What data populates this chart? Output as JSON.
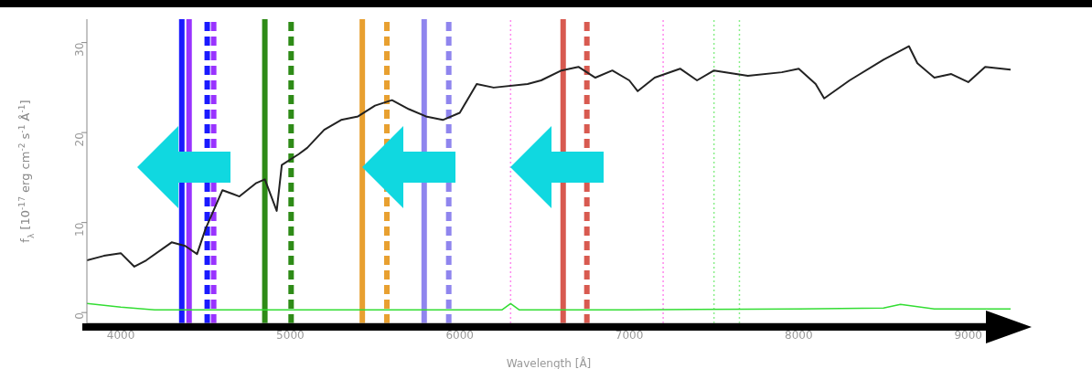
{
  "chart_data": {
    "type": "line",
    "xlabel": "Wavelength [Å]",
    "ylabel": "f$_{λ}$ [10$^{-17}$ erg cm$^{-2}$ s$^{-1}$ Å$^{-1}$]",
    "xlim": [
      3800,
      9250
    ],
    "xticks": [
      4000,
      5000,
      6000,
      7000,
      8000,
      9000
    ],
    "ylim": [
      -1.2,
      32.6
    ],
    "yticks": [
      0,
      10,
      20,
      30
    ],
    "grid": false,
    "legend": false,
    "marker": "none",
    "line_style": "solid",
    "series": [
      {
        "color": "#222222",
        "x": [
          3800,
          3900,
          4000,
          4080,
          4150,
          4300,
          4380,
          4450,
          4500,
          4600,
          4700,
          4800,
          4850,
          4920,
          4950,
          5050,
          5100,
          5200,
          5300,
          5400,
          5500,
          5600,
          5700,
          5800,
          5900,
          6000,
          6100,
          6200,
          6400,
          6480,
          6600,
          6700,
          6800,
          6900,
          7000,
          7050,
          7150,
          7300,
          7400,
          7500,
          7700,
          7900,
          8000,
          8100,
          8150,
          8300,
          8500,
          8650,
          8700,
          8800,
          8900,
          9000,
          9100,
          9250
        ],
        "values": [
          5.8,
          6.3,
          6.6,
          5.1,
          5.8,
          7.8,
          7.4,
          6.5,
          9.3,
          13.6,
          12.9,
          14.4,
          14.8,
          11.3,
          16.4,
          17.6,
          18.3,
          20.3,
          21.4,
          21.8,
          23.0,
          23.6,
          22.6,
          21.8,
          21.4,
          22.2,
          25.4,
          25.0,
          25.4,
          25.8,
          26.9,
          27.3,
          26.1,
          26.9,
          25.8,
          24.6,
          26.1,
          27.1,
          25.8,
          26.9,
          26.3,
          26.7,
          27.1,
          25.4,
          23.8,
          25.8,
          28.1,
          29.6,
          27.7,
          26.1,
          26.5,
          25.6,
          27.3,
          27.0
        ]
      },
      {
        "color": "#33dd33",
        "x": [
          3800,
          4000,
          4200,
          5000,
          6000,
          6250,
          6300,
          6350,
          7000,
          8000,
          8500,
          8600,
          8800,
          9250
        ],
        "values": [
          1.0,
          0.6,
          0.3,
          0.3,
          0.3,
          0.3,
          1.0,
          0.3,
          0.3,
          0.4,
          0.5,
          0.9,
          0.4,
          0.4
        ]
      }
    ],
    "ref_lines": [
      {
        "axis": "x",
        "value": 4360,
        "color": "#1a1aff",
        "line_style": "solid"
      },
      {
        "axis": "x",
        "value": 4403,
        "color": "#9933ff",
        "line_style": "solid"
      },
      {
        "axis": "x",
        "value": 4510,
        "color": "#1a1aff",
        "line_style": "dashed"
      },
      {
        "axis": "x",
        "value": 4548,
        "color": "#9933ff",
        "line_style": "dashed"
      },
      {
        "axis": "x",
        "value": 4850,
        "color": "#2e8b17",
        "line_style": "solid"
      },
      {
        "axis": "x",
        "value": 5005,
        "color": "#2e8b17",
        "line_style": "dashed"
      },
      {
        "axis": "x",
        "value": 5425,
        "color": "#e8a030",
        "line_style": "solid"
      },
      {
        "axis": "x",
        "value": 5570,
        "color": "#e8a030",
        "line_style": "dashed"
      },
      {
        "axis": "x",
        "value": 5790,
        "color": "#8f85ee",
        "line_style": "solid"
      },
      {
        "axis": "x",
        "value": 5935,
        "color": "#8f85ee",
        "line_style": "dashed"
      },
      {
        "axis": "x",
        "value": 6610,
        "color": "#d85a50",
        "line_style": "solid"
      },
      {
        "axis": "x",
        "value": 6750,
        "color": "#d85a50",
        "line_style": "dashed"
      },
      {
        "axis": "x",
        "value": 6300,
        "color": "#ff88ee",
        "line_style": "dotted"
      },
      {
        "axis": "x",
        "value": 7200,
        "color": "#ff88ee",
        "line_style": "dotted"
      },
      {
        "axis": "x",
        "value": 7500,
        "color": "#88ee88",
        "line_style": "dotted"
      },
      {
        "axis": "x",
        "value": 7650,
        "color": "#88ee88",
        "line_style": "dotted"
      }
    ]
  }
}
